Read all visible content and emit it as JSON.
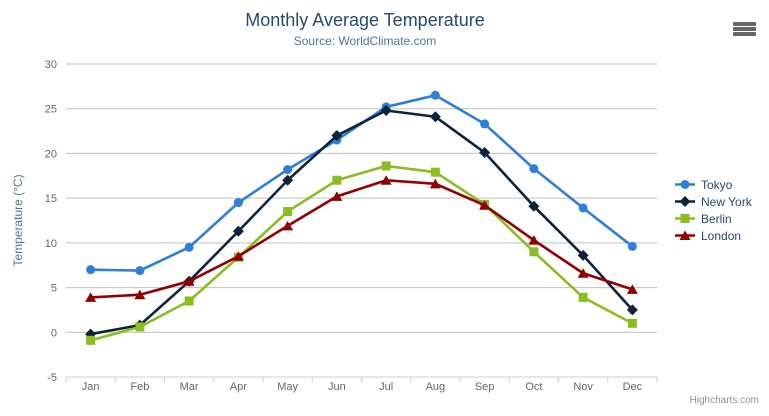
{
  "page": {
    "title": "Monthly Average Temperature",
    "subtitle": "Source: WorldClimate.com",
    "credit": "Highcharts.com"
  },
  "export_menu": {
    "icon": "hamburger-menu-icon"
  },
  "colors": {
    "title": "#274b6d",
    "subtitle": "#4d759e",
    "axis_title": "#4d759e",
    "tick_label": "#666666",
    "gridline": "#c0c0c0",
    "axis_line": "#c0d0e0",
    "legend_text": "#274b6d",
    "credit": "#909090",
    "menu_icon": "#666666",
    "background": "#ffffff"
  },
  "chart_data": {
    "type": "line",
    "title": "Monthly Average Temperature",
    "subtitle": "Source: WorldClimate.com",
    "categories": [
      "Jan",
      "Feb",
      "Mar",
      "Apr",
      "May",
      "Jun",
      "Jul",
      "Aug",
      "Sep",
      "Oct",
      "Nov",
      "Dec"
    ],
    "xlabel": "",
    "ylabel": "Temperature (°C)",
    "ylim": [
      -5,
      30
    ],
    "yticks": [
      -5,
      0,
      5,
      10,
      15,
      20,
      25,
      30
    ],
    "grid": true,
    "legend_position": "right",
    "series": [
      {
        "name": "Tokyo",
        "color": "#2f7ed8",
        "marker": "circle",
        "values": [
          7.0,
          6.9,
          9.5,
          14.5,
          18.2,
          21.5,
          25.2,
          26.5,
          23.3,
          18.3,
          13.9,
          9.6
        ]
      },
      {
        "name": "New York",
        "color": "#0d233a",
        "marker": "diamond",
        "values": [
          -0.2,
          0.8,
          5.7,
          11.3,
          17.0,
          22.0,
          24.8,
          24.1,
          20.1,
          14.1,
          8.6,
          2.5
        ]
      },
      {
        "name": "Berlin",
        "color": "#8bbc21",
        "marker": "square",
        "values": [
          -0.9,
          0.6,
          3.5,
          8.4,
          13.5,
          17.0,
          18.6,
          17.9,
          14.3,
          9.0,
          3.9,
          1.0
        ]
      },
      {
        "name": "London",
        "color": "#910000",
        "marker": "triangle",
        "values": [
          3.9,
          4.2,
          5.7,
          8.5,
          11.9,
          15.2,
          17.0,
          16.6,
          14.2,
          10.3,
          6.6,
          4.8
        ]
      }
    ]
  }
}
